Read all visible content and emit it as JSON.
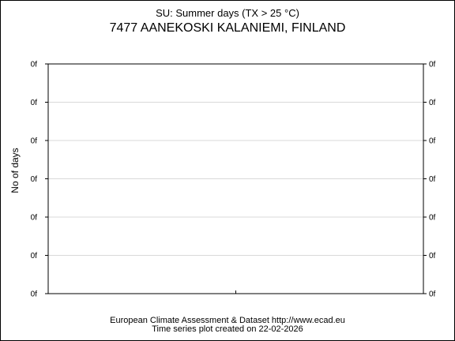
{
  "chart_data": {
    "type": "line",
    "title": "SU: Summer days (TX > 25 °C)",
    "subtitle": "7477 AANEKOSKI KALANIEMI, FINLAND",
    "ylabel": "No of days",
    "y_tick_labels": [
      "0f",
      "0f",
      "0f",
      "0f",
      "0f",
      "0f",
      "0f"
    ],
    "grid": true,
    "series": []
  },
  "footer": {
    "line1": "European Climate Assessment & Dataset  http://www.ecad.eu",
    "line2": "Time series plot created on 22-02-2026"
  }
}
